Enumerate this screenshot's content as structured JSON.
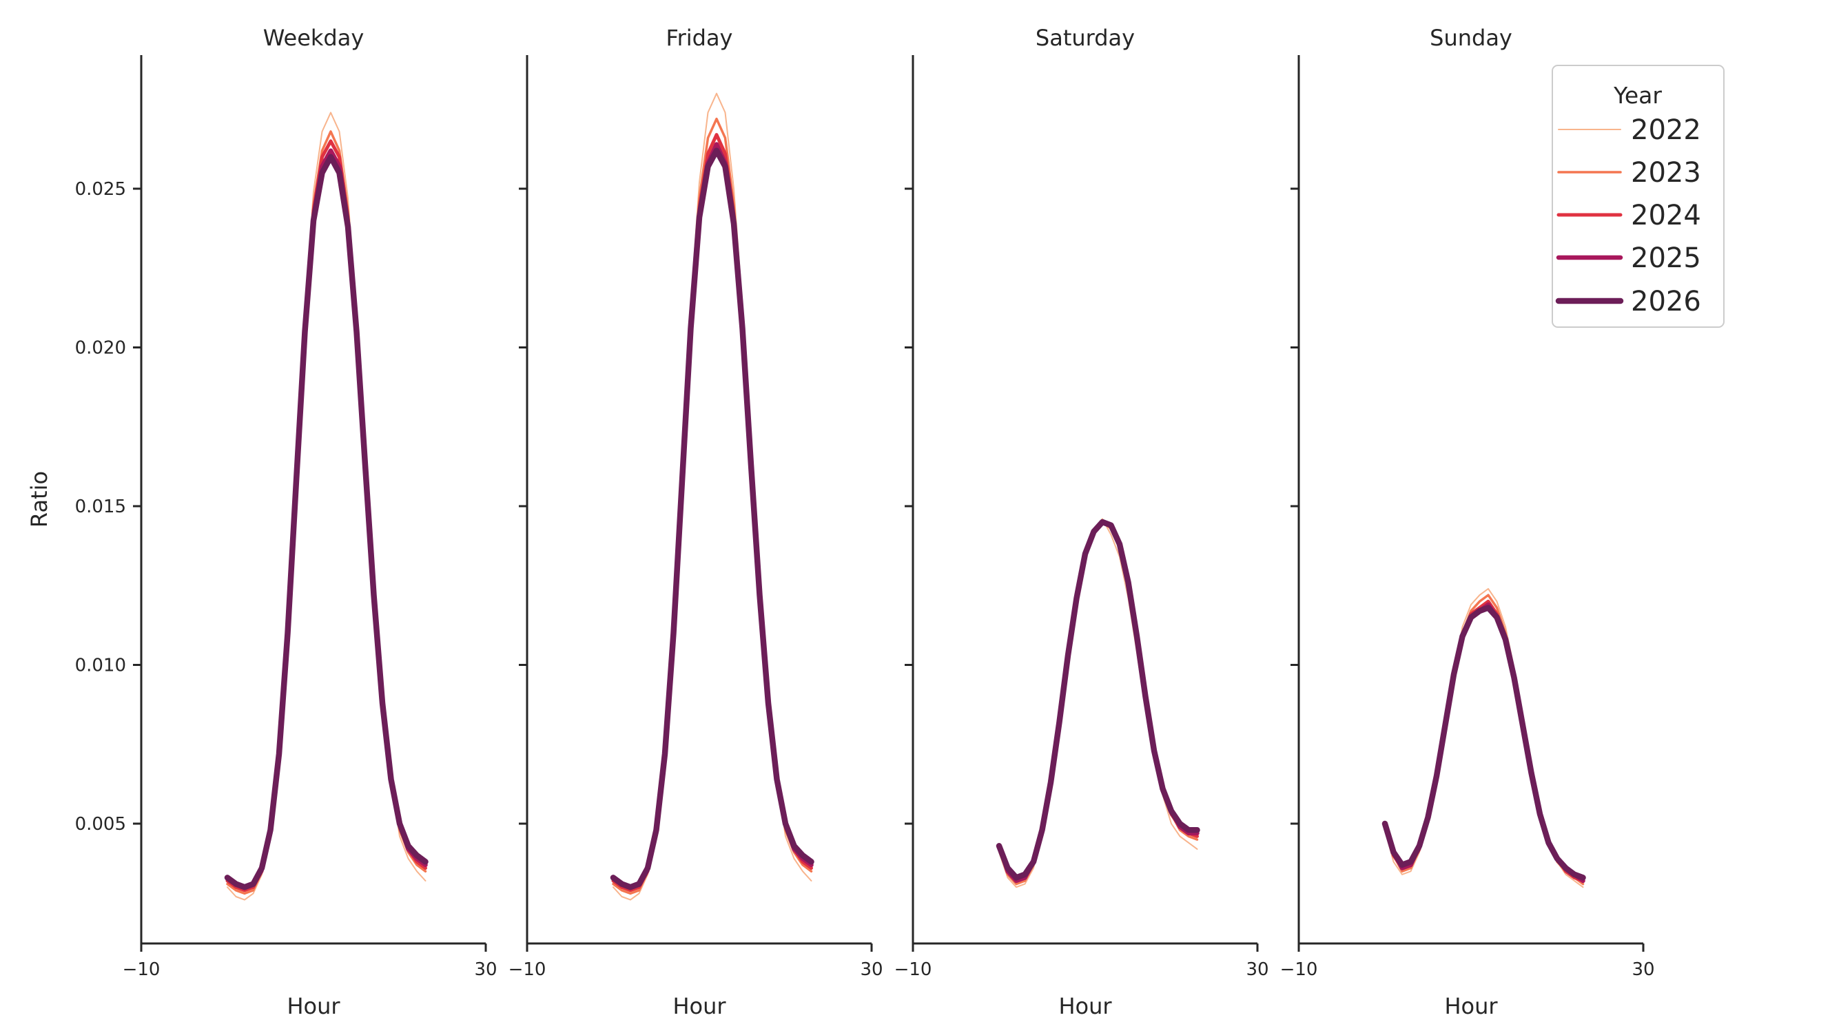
{
  "figure": {
    "background": "#ffffff",
    "text_color": "#262626",
    "axis_color": "#262626",
    "ylabel": "Ratio",
    "xlabel": "Hour",
    "x_tick_labels": [
      "−10",
      "30"
    ],
    "y_tick_labels": [
      "0.005",
      "0.010",
      "0.015",
      "0.020",
      "0.025"
    ]
  },
  "legend": {
    "title": "Year",
    "border_color": "#cccccc",
    "background": "#ffffff",
    "entries": [
      {
        "label": "2022",
        "color": "#f8b48c",
        "line_width": 2
      },
      {
        "label": "2023",
        "color": "#f47650",
        "line_width": 3.5
      },
      {
        "label": "2024",
        "color": "#e03241",
        "line_width": 5
      },
      {
        "label": "2025",
        "color": "#a8185c",
        "line_width": 6.5
      },
      {
        "label": "2026",
        "color": "#6c1e58",
        "line_width": 8.5
      }
    ]
  },
  "chart_data": {
    "type": "line",
    "xlabel": "Hour",
    "ylabel": "Ratio",
    "x_axis_range": [
      -10,
      30
    ],
    "y_axis_range": [
      0.0012,
      0.0292
    ],
    "x_ticks": [
      -10,
      30
    ],
    "y_ticks": [
      0.005,
      0.01,
      0.015,
      0.02,
      0.025
    ],
    "grid": false,
    "legend_title": "Year",
    "legend_position": "upper right",
    "hours": [
      0,
      1,
      2,
      3,
      4,
      5,
      6,
      7,
      8,
      9,
      10,
      11,
      12,
      13,
      14,
      15,
      16,
      17,
      18,
      19,
      20,
      21,
      22,
      23
    ],
    "panels": [
      {
        "title": "Weekday",
        "series": [
          {
            "name": "2022",
            "values": [
              0.003,
              0.0027,
              0.0026,
              0.0028,
              0.0034,
              0.0048,
              0.0072,
              0.011,
              0.0158,
              0.0211,
              0.0249,
              0.0268,
              0.0274,
              0.0268,
              0.0247,
              0.0211,
              0.0163,
              0.0122,
              0.0088,
              0.0064,
              0.0046,
              0.0039,
              0.0035,
              0.0032
            ]
          },
          {
            "name": "2023",
            "values": [
              0.0031,
              0.0029,
              0.0028,
              0.0029,
              0.0035,
              0.0048,
              0.0072,
              0.011,
              0.0158,
              0.0208,
              0.0245,
              0.0262,
              0.0268,
              0.0262,
              0.0243,
              0.0208,
              0.0163,
              0.0122,
              0.0088,
              0.0064,
              0.0048,
              0.0041,
              0.0037,
              0.0035
            ]
          },
          {
            "name": "2024",
            "values": [
              0.0032,
              0.003,
              0.0029,
              0.003,
              0.0035,
              0.0048,
              0.0072,
              0.011,
              0.0158,
              0.0207,
              0.0243,
              0.026,
              0.0265,
              0.026,
              0.0241,
              0.0207,
              0.0163,
              0.0122,
              0.0088,
              0.0064,
              0.0049,
              0.0042,
              0.0038,
              0.0036
            ]
          },
          {
            "name": "2025",
            "values": [
              0.0033,
              0.0031,
              0.003,
              0.0031,
              0.0036,
              0.0048,
              0.0072,
              0.011,
              0.0158,
              0.0206,
              0.0241,
              0.0257,
              0.0262,
              0.0257,
              0.0239,
              0.0206,
              0.0163,
              0.0122,
              0.0088,
              0.0064,
              0.005,
              0.0042,
              0.0039,
              0.0037
            ]
          },
          {
            "name": "2026",
            "values": [
              0.0033,
              0.0031,
              0.003,
              0.0031,
              0.0036,
              0.0048,
              0.0072,
              0.011,
              0.0158,
              0.0205,
              0.024,
              0.0255,
              0.026,
              0.0255,
              0.0238,
              0.0205,
              0.0163,
              0.0122,
              0.0088,
              0.0064,
              0.005,
              0.0043,
              0.004,
              0.0038
            ]
          }
        ]
      },
      {
        "title": "Friday",
        "series": [
          {
            "name": "2022",
            "values": [
              0.003,
              0.0027,
              0.0026,
              0.0028,
              0.0034,
              0.0048,
              0.0072,
              0.011,
              0.0158,
              0.0213,
              0.0252,
              0.0274,
              0.028,
              0.0274,
              0.025,
              0.0213,
              0.0163,
              0.0122,
              0.0088,
              0.0064,
              0.0046,
              0.0039,
              0.0035,
              0.0032
            ]
          },
          {
            "name": "2023",
            "values": [
              0.0031,
              0.0029,
              0.0028,
              0.0029,
              0.0035,
              0.0048,
              0.0072,
              0.011,
              0.0158,
              0.021,
              0.0247,
              0.0266,
              0.0272,
              0.0266,
              0.0245,
              0.021,
              0.0163,
              0.0122,
              0.0088,
              0.0064,
              0.0048,
              0.0041,
              0.0037,
              0.0035
            ]
          },
          {
            "name": "2024",
            "values": [
              0.0032,
              0.003,
              0.0029,
              0.003,
              0.0035,
              0.0048,
              0.0072,
              0.011,
              0.0158,
              0.0208,
              0.0244,
              0.0261,
              0.0267,
              0.0261,
              0.0242,
              0.0208,
              0.0163,
              0.0122,
              0.0088,
              0.0064,
              0.0049,
              0.0042,
              0.0038,
              0.0036
            ]
          },
          {
            "name": "2025",
            "values": [
              0.0033,
              0.0031,
              0.003,
              0.0031,
              0.0036,
              0.0048,
              0.0072,
              0.011,
              0.0158,
              0.0207,
              0.0242,
              0.0258,
              0.0264,
              0.0258,
              0.024,
              0.0207,
              0.0163,
              0.0122,
              0.0088,
              0.0064,
              0.005,
              0.0042,
              0.0039,
              0.0037
            ]
          },
          {
            "name": "2026",
            "values": [
              0.0033,
              0.0031,
              0.003,
              0.0031,
              0.0036,
              0.0048,
              0.0072,
              0.011,
              0.0158,
              0.0206,
              0.0241,
              0.0257,
              0.0262,
              0.0257,
              0.0239,
              0.0206,
              0.0163,
              0.0122,
              0.0088,
              0.0064,
              0.005,
              0.0043,
              0.004,
              0.0038
            ]
          }
        ]
      },
      {
        "title": "Saturday",
        "series": [
          {
            "name": "2022",
            "values": [
              0.0041,
              0.0033,
              0.003,
              0.0031,
              0.0036,
              0.0048,
              0.0063,
              0.0082,
              0.0103,
              0.0121,
              0.0135,
              0.0143,
              0.0146,
              0.0141,
              0.0134,
              0.0121,
              0.0104,
              0.0086,
              0.0071,
              0.0059,
              0.005,
              0.0046,
              0.0044,
              0.0042
            ]
          },
          {
            "name": "2023",
            "values": [
              0.0042,
              0.0034,
              0.0031,
              0.0032,
              0.0037,
              0.0048,
              0.0063,
              0.0082,
              0.0103,
              0.0121,
              0.0135,
              0.0142,
              0.0145,
              0.0143,
              0.0137,
              0.0124,
              0.0107,
              0.0088,
              0.0072,
              0.006,
              0.0053,
              0.0048,
              0.0046,
              0.0045
            ]
          },
          {
            "name": "2024",
            "values": [
              0.0043,
              0.0035,
              0.0032,
              0.0033,
              0.0038,
              0.0048,
              0.0063,
              0.0082,
              0.0103,
              0.0121,
              0.0135,
              0.0142,
              0.0145,
              0.0144,
              0.0137,
              0.0125,
              0.0108,
              0.0089,
              0.0072,
              0.006,
              0.0053,
              0.0049,
              0.0047,
              0.0046
            ]
          },
          {
            "name": "2025",
            "values": [
              0.0043,
              0.0035,
              0.0032,
              0.0033,
              0.0038,
              0.0048,
              0.0063,
              0.0082,
              0.0103,
              0.0121,
              0.0135,
              0.0142,
              0.0145,
              0.0144,
              0.0138,
              0.0126,
              0.0109,
              0.009,
              0.0073,
              0.0061,
              0.0054,
              0.0049,
              0.0047,
              0.0047
            ]
          },
          {
            "name": "2026",
            "values": [
              0.0043,
              0.0036,
              0.0033,
              0.0034,
              0.0038,
              0.0048,
              0.0063,
              0.0082,
              0.0103,
              0.0121,
              0.0135,
              0.0142,
              0.0145,
              0.0144,
              0.0138,
              0.0126,
              0.0109,
              0.009,
              0.0073,
              0.0061,
              0.0054,
              0.005,
              0.0048,
              0.0048
            ]
          }
        ]
      },
      {
        "title": "Sunday",
        "series": [
          {
            "name": "2022",
            "values": [
              0.0048,
              0.0038,
              0.0034,
              0.0035,
              0.0041,
              0.0052,
              0.0065,
              0.0081,
              0.0097,
              0.0112,
              0.0119,
              0.0122,
              0.0124,
              0.012,
              0.0112,
              0.0099,
              0.0081,
              0.0066,
              0.0053,
              0.0044,
              0.0038,
              0.0034,
              0.0032,
              0.003
            ]
          },
          {
            "name": "2023",
            "values": [
              0.0049,
              0.004,
              0.0035,
              0.0036,
              0.0042,
              0.0052,
              0.0065,
              0.0081,
              0.0097,
              0.011,
              0.0117,
              0.012,
              0.0122,
              0.0118,
              0.011,
              0.0097,
              0.0081,
              0.0066,
              0.0053,
              0.0044,
              0.0038,
              0.0035,
              0.0033,
              0.0031
            ]
          },
          {
            "name": "2024",
            "values": [
              0.005,
              0.004,
              0.0036,
              0.0037,
              0.0042,
              0.0052,
              0.0065,
              0.0081,
              0.0097,
              0.0109,
              0.0116,
              0.0118,
              0.012,
              0.0116,
              0.0109,
              0.0096,
              0.0081,
              0.0066,
              0.0053,
              0.0044,
              0.0039,
              0.0035,
              0.0033,
              0.0032
            ]
          },
          {
            "name": "2025",
            "values": [
              0.005,
              0.0041,
              0.0036,
              0.0037,
              0.0043,
              0.0052,
              0.0065,
              0.0081,
              0.0097,
              0.0109,
              0.0115,
              0.0117,
              0.0119,
              0.0115,
              0.0108,
              0.0096,
              0.0081,
              0.0066,
              0.0053,
              0.0044,
              0.0039,
              0.0036,
              0.0034,
              0.0032
            ]
          },
          {
            "name": "2026",
            "values": [
              0.005,
              0.0041,
              0.0037,
              0.0038,
              0.0043,
              0.0052,
              0.0065,
              0.0081,
              0.0097,
              0.0109,
              0.0115,
              0.0117,
              0.0118,
              0.0115,
              0.0108,
              0.0096,
              0.0081,
              0.0066,
              0.0053,
              0.0044,
              0.0039,
              0.0036,
              0.0034,
              0.0033
            ]
          }
        ]
      }
    ]
  }
}
